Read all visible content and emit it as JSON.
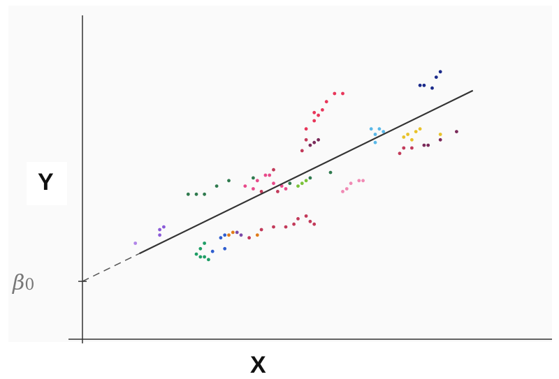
{
  "chart_data": {
    "type": "scatter",
    "title": "",
    "xlabel": "X",
    "ylabel": "Y",
    "xlim": [
      0,
      100
    ],
    "ylim": [
      0,
      100
    ],
    "grid": false,
    "intercept_label": "β",
    "intercept_subscript": "0",
    "regression_line": {
      "intercept": 21,
      "slope": 0.73,
      "x_start": 0,
      "x_dashed_end": 14,
      "x_end": 96
    },
    "points": [
      {
        "x": 13,
        "y": 35,
        "color": "#b084e8"
      },
      {
        "x": 19,
        "y": 40,
        "color": "#8a5ad8"
      },
      {
        "x": 20,
        "y": 41,
        "color": "#8a5ad8"
      },
      {
        "x": 19,
        "y": 38,
        "color": "#8a5ad8"
      },
      {
        "x": 26,
        "y": 53,
        "color": "#2f7a4e"
      },
      {
        "x": 28,
        "y": 53,
        "color": "#2f7a4e"
      },
      {
        "x": 30,
        "y": 53,
        "color": "#2f7a4e"
      },
      {
        "x": 33,
        "y": 56,
        "color": "#2f7a4e"
      },
      {
        "x": 36,
        "y": 58,
        "color": "#2f7a4e"
      },
      {
        "x": 28,
        "y": 31,
        "color": "#1f9e66"
      },
      {
        "x": 29,
        "y": 30,
        "color": "#1f9e66"
      },
      {
        "x": 30,
        "y": 30,
        "color": "#1f9e66"
      },
      {
        "x": 31,
        "y": 29,
        "color": "#1f9e66"
      },
      {
        "x": 29,
        "y": 33,
        "color": "#1f9e66"
      },
      {
        "x": 30,
        "y": 35,
        "color": "#1f9e66"
      },
      {
        "x": 32,
        "y": 32,
        "color": "#2f5ecf"
      },
      {
        "x": 34,
        "y": 37,
        "color": "#2f5ecf"
      },
      {
        "x": 35,
        "y": 38,
        "color": "#2f5ecf"
      },
      {
        "x": 35,
        "y": 33,
        "color": "#2f5ecf"
      },
      {
        "x": 36,
        "y": 38,
        "color": "#e07c1a"
      },
      {
        "x": 37,
        "y": 39,
        "color": "#e07c1a"
      },
      {
        "x": 38,
        "y": 39,
        "color": "#7a4aa8"
      },
      {
        "x": 39,
        "y": 38,
        "color": "#7a4aa8"
      },
      {
        "x": 41,
        "y": 37,
        "color": "#c23a5a"
      },
      {
        "x": 43,
        "y": 38,
        "color": "#e07c1a"
      },
      {
        "x": 44,
        "y": 40,
        "color": "#c23a5a"
      },
      {
        "x": 47,
        "y": 41,
        "color": "#c23a5a"
      },
      {
        "x": 50,
        "y": 41,
        "color": "#c23a5a"
      },
      {
        "x": 52,
        "y": 42,
        "color": "#c23a5a"
      },
      {
        "x": 53,
        "y": 44,
        "color": "#c23a5a"
      },
      {
        "x": 55,
        "y": 45,
        "color": "#c23a5a"
      },
      {
        "x": 56,
        "y": 43,
        "color": "#c23a5a"
      },
      {
        "x": 57,
        "y": 42,
        "color": "#c23a5a"
      },
      {
        "x": 42,
        "y": 59,
        "color": "#2f7a4e"
      },
      {
        "x": 40,
        "y": 56,
        "color": "#e84a8a"
      },
      {
        "x": 42,
        "y": 55,
        "color": "#e84a8a"
      },
      {
        "x": 43,
        "y": 58,
        "color": "#e84a8a"
      },
      {
        "x": 45,
        "y": 60,
        "color": "#e84a8a"
      },
      {
        "x": 46,
        "y": 60,
        "color": "#e84a8a"
      },
      {
        "x": 47,
        "y": 57,
        "color": "#e84a8a"
      },
      {
        "x": 49,
        "y": 56,
        "color": "#e84a8a"
      },
      {
        "x": 50,
        "y": 55,
        "color": "#e84a8a"
      },
      {
        "x": 44,
        "y": 54,
        "color": "#c23a5a"
      },
      {
        "x": 48,
        "y": 54,
        "color": "#c23a5a"
      },
      {
        "x": 51,
        "y": 57,
        "color": "#2f7a4e"
      },
      {
        "x": 53,
        "y": 56,
        "color": "#7ac23a"
      },
      {
        "x": 54,
        "y": 57,
        "color": "#7ac23a"
      },
      {
        "x": 55,
        "y": 58,
        "color": "#7ac23a"
      },
      {
        "x": 56,
        "y": 59,
        "color": "#2f7a4e"
      },
      {
        "x": 47,
        "y": 62,
        "color": "#c23a5a"
      },
      {
        "x": 54,
        "y": 69,
        "color": "#c23a5a"
      },
      {
        "x": 55,
        "y": 73,
        "color": "#c23a5a"
      },
      {
        "x": 56,
        "y": 71,
        "color": "#7a2a5a"
      },
      {
        "x": 57,
        "y": 72,
        "color": "#7a2a5a"
      },
      {
        "x": 58,
        "y": 73,
        "color": "#7a2a5a"
      },
      {
        "x": 55,
        "y": 77,
        "color": "#e8365a"
      },
      {
        "x": 57,
        "y": 80,
        "color": "#e8365a"
      },
      {
        "x": 57,
        "y": 83,
        "color": "#e8365a"
      },
      {
        "x": 59,
        "y": 84,
        "color": "#e8365a"
      },
      {
        "x": 58,
        "y": 82,
        "color": "#e8365a"
      },
      {
        "x": 60,
        "y": 87,
        "color": "#e8365a"
      },
      {
        "x": 62,
        "y": 90,
        "color": "#e8365a"
      },
      {
        "x": 64,
        "y": 90,
        "color": "#e8365a"
      },
      {
        "x": 61,
        "y": 61,
        "color": "#2f7a4e"
      },
      {
        "x": 64,
        "y": 54,
        "color": "#f08ab4"
      },
      {
        "x": 65,
        "y": 55,
        "color": "#f08ab4"
      },
      {
        "x": 66,
        "y": 57,
        "color": "#f08ab4"
      },
      {
        "x": 68,
        "y": 58,
        "color": "#f08ab4"
      },
      {
        "x": 69,
        "y": 58,
        "color": "#f08ab4"
      },
      {
        "x": 71,
        "y": 77,
        "color": "#5ab8e8"
      },
      {
        "x": 72,
        "y": 75,
        "color": "#5ab8e8"
      },
      {
        "x": 73,
        "y": 77,
        "color": "#5ab8e8"
      },
      {
        "x": 74,
        "y": 76,
        "color": "#5ab8e8"
      },
      {
        "x": 72,
        "y": 72,
        "color": "#5ab8e8"
      },
      {
        "x": 78,
        "y": 68,
        "color": "#c23a5a"
      },
      {
        "x": 79,
        "y": 70,
        "color": "#c23a5a"
      },
      {
        "x": 79,
        "y": 74,
        "color": "#e8c22a"
      },
      {
        "x": 80,
        "y": 75,
        "color": "#e8c22a"
      },
      {
        "x": 81,
        "y": 73,
        "color": "#e8c22a"
      },
      {
        "x": 82,
        "y": 76,
        "color": "#e8c22a"
      },
      {
        "x": 83,
        "y": 77,
        "color": "#e8c22a"
      },
      {
        "x": 81,
        "y": 70,
        "color": "#c23a5a"
      },
      {
        "x": 84,
        "y": 71,
        "color": "#7a2a5a"
      },
      {
        "x": 85,
        "y": 71,
        "color": "#7a2a5a"
      },
      {
        "x": 88,
        "y": 73,
        "color": "#7a2a5a"
      },
      {
        "x": 88,
        "y": 75,
        "color": "#e8c22a"
      },
      {
        "x": 92,
        "y": 76,
        "color": "#7a2a5a"
      },
      {
        "x": 83,
        "y": 93,
        "color": "#1a2a8a"
      },
      {
        "x": 84,
        "y": 93,
        "color": "#1a2a8a"
      },
      {
        "x": 86,
        "y": 92,
        "color": "#1a2a8a"
      },
      {
        "x": 87,
        "y": 96,
        "color": "#1a2a8a"
      },
      {
        "x": 88,
        "y": 98,
        "color": "#1a2a8a"
      }
    ]
  }
}
